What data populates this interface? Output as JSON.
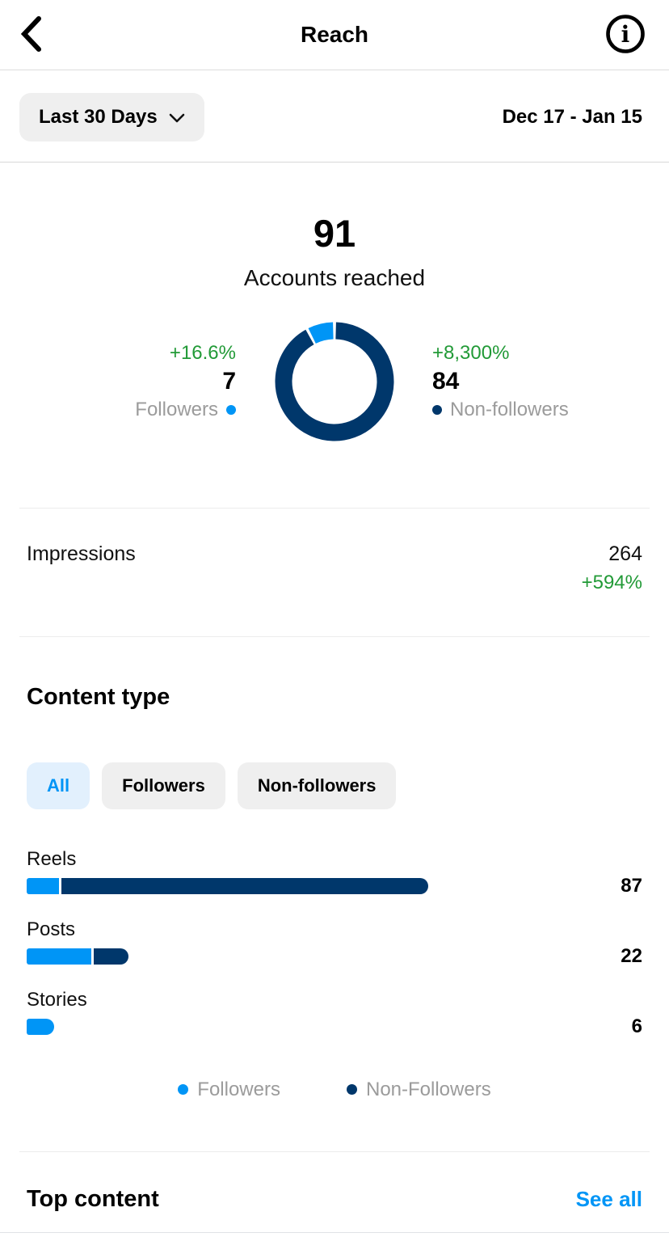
{
  "colors": {
    "followers_blue": "#0095f6",
    "non_followers_navy": "#00376b",
    "positive_green": "#229a37",
    "muted_gray": "#9b9b9b",
    "chip_gray_bg": "#efefef",
    "chip_selected_bg": "#e2f0fd",
    "link_blue": "#0095f6"
  },
  "icons": {
    "back": "chevron-left-icon",
    "info": "info-circle-icon",
    "period_dropdown": "chevron-down-icon"
  },
  "header": {
    "title": "Reach"
  },
  "period": {
    "selector_label": "Last 30 Days",
    "date_range": "Dec 17 - Jan 15"
  },
  "summary": {
    "value": "91",
    "label": "Accounts reached",
    "followers": {
      "change": "+16.6%",
      "value": "7",
      "label": "Followers"
    },
    "non_followers": {
      "change": "+8,300%",
      "value": "84",
      "label": "Non-followers"
    }
  },
  "impressions": {
    "label": "Impressions",
    "value": "264",
    "change": "+594%"
  },
  "content_type": {
    "title": "Content type",
    "filters": [
      {
        "label": "All",
        "selected": true
      },
      {
        "label": "Followers",
        "selected": false
      },
      {
        "label": "Non-followers",
        "selected": false
      }
    ],
    "legend": [
      {
        "label": "Followers",
        "color": "#0095f6"
      },
      {
        "label": "Non-Followers",
        "color": "#00376b"
      }
    ]
  },
  "top_content": {
    "title": "Top content",
    "link_label": "See all"
  },
  "chart_data": [
    {
      "type": "pie",
      "title": "Accounts reached split",
      "total": 91,
      "slices": [
        {
          "name": "Non-followers",
          "value": 84,
          "color": "#00376b"
        },
        {
          "name": "Followers",
          "value": 7,
          "color": "#0095f6"
        }
      ],
      "layout": "donut, starts at 12 o'clock clockwise, white gaps between slices"
    },
    {
      "type": "bar",
      "title": "Reach by content type",
      "categories": [
        "Reels",
        "Posts",
        "Stories"
      ],
      "series": [
        {
          "name": "Followers",
          "color": "#0095f6",
          "values": [
            7,
            14,
            6
          ]
        },
        {
          "name": "Non-Followers",
          "color": "#00376b",
          "values": [
            80,
            8,
            0
          ]
        }
      ],
      "totals": [
        87,
        22,
        6
      ],
      "xlim": [
        0,
        87
      ],
      "orientation": "horizontal",
      "value_labels": true
    }
  ]
}
